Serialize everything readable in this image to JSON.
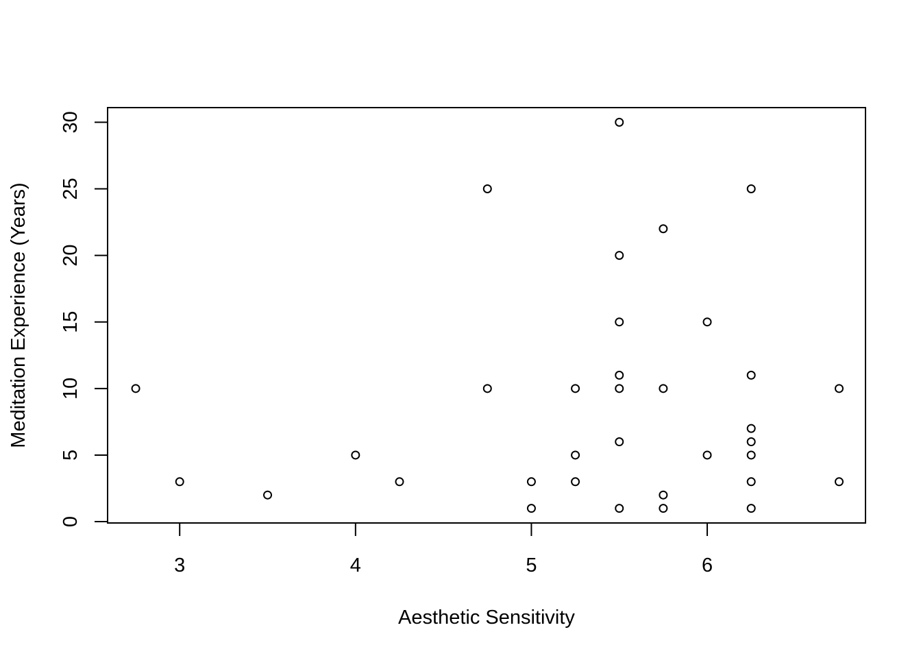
{
  "chart_data": {
    "type": "scatter",
    "title": "",
    "xlabel": "Aesthetic Sensitivity",
    "ylabel": "Meditation Experience (Years)",
    "xlim": [
      2.59,
      6.9
    ],
    "ylim": [
      -0.1,
      31.1
    ],
    "xticks": [
      3,
      4,
      5,
      6
    ],
    "xtick_labels": [
      "3",
      "4",
      "5",
      "6"
    ],
    "yticks": [
      0,
      5,
      10,
      15,
      20,
      25,
      30
    ],
    "ytick_labels": [
      "0",
      "5",
      "10",
      "15",
      "20",
      "25",
      "30"
    ],
    "grid": false,
    "legend": "none",
    "marker": "open-circle",
    "point_color": "#000000",
    "points": [
      {
        "x": 2.75,
        "y": 10
      },
      {
        "x": 3.0,
        "y": 3
      },
      {
        "x": 3.5,
        "y": 2
      },
      {
        "x": 4.0,
        "y": 5
      },
      {
        "x": 4.25,
        "y": 3
      },
      {
        "x": 4.75,
        "y": 25
      },
      {
        "x": 4.75,
        "y": 10
      },
      {
        "x": 5.0,
        "y": 3
      },
      {
        "x": 5.0,
        "y": 1
      },
      {
        "x": 5.25,
        "y": 10
      },
      {
        "x": 5.25,
        "y": 5
      },
      {
        "x": 5.25,
        "y": 3
      },
      {
        "x": 5.5,
        "y": 30
      },
      {
        "x": 5.5,
        "y": 20
      },
      {
        "x": 5.5,
        "y": 15
      },
      {
        "x": 5.5,
        "y": 11
      },
      {
        "x": 5.5,
        "y": 10
      },
      {
        "x": 5.5,
        "y": 6
      },
      {
        "x": 5.5,
        "y": 1
      },
      {
        "x": 5.75,
        "y": 22
      },
      {
        "x": 5.75,
        "y": 10
      },
      {
        "x": 5.75,
        "y": 2
      },
      {
        "x": 5.75,
        "y": 1
      },
      {
        "x": 6.0,
        "y": 15
      },
      {
        "x": 6.0,
        "y": 5
      },
      {
        "x": 6.25,
        "y": 25
      },
      {
        "x": 6.25,
        "y": 11
      },
      {
        "x": 6.25,
        "y": 7
      },
      {
        "x": 6.25,
        "y": 6
      },
      {
        "x": 6.25,
        "y": 5
      },
      {
        "x": 6.25,
        "y": 3
      },
      {
        "x": 6.25,
        "y": 1
      },
      {
        "x": 6.75,
        "y": 10
      },
      {
        "x": 6.75,
        "y": 3
      }
    ]
  }
}
